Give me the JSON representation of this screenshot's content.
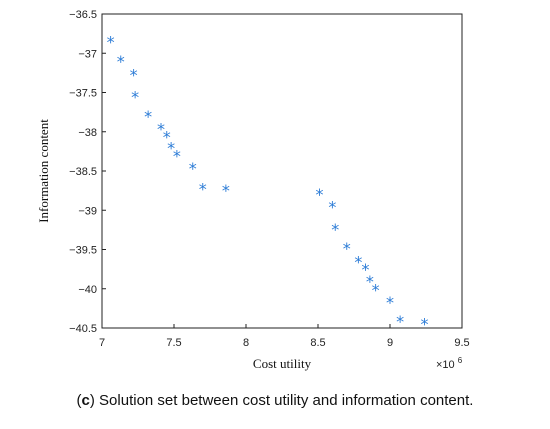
{
  "chart_data": {
    "type": "scatter",
    "xlabel": "Cost utility",
    "ylabel": "Information content",
    "xlim": [
      7,
      9.5
    ],
    "ylim": [
      -40.5,
      -36.5
    ],
    "x_ticks": [
      "7",
      "7.5",
      "8",
      "8.5",
      "9",
      "9.5"
    ],
    "y_ticks": [
      "-36.5",
      "-37",
      "-37.5",
      "-38",
      "-38.5",
      "-39",
      "-39.5",
      "-40",
      "-40.5"
    ],
    "x_exponent_label": "×10",
    "x_exponent_power": "6",
    "marker": "*",
    "marker_color": "#2b7bd6",
    "grid": false,
    "points": [
      {
        "x": 7.06,
        "y": -36.85
      },
      {
        "x": 7.13,
        "y": -37.1
      },
      {
        "x": 7.22,
        "y": -37.27
      },
      {
        "x": 7.23,
        "y": -37.55
      },
      {
        "x": 7.32,
        "y": -37.8
      },
      {
        "x": 7.41,
        "y": -37.96
      },
      {
        "x": 7.45,
        "y": -38.06
      },
      {
        "x": 7.48,
        "y": -38.2
      },
      {
        "x": 7.52,
        "y": -38.3
      },
      {
        "x": 7.63,
        "y": -38.46
      },
      {
        "x": 7.7,
        "y": -38.72
      },
      {
        "x": 7.86,
        "y": -38.74
      },
      {
        "x": 8.51,
        "y": -38.79
      },
      {
        "x": 8.6,
        "y": -38.95
      },
      {
        "x": 8.62,
        "y": -39.24
      },
      {
        "x": 8.7,
        "y": -39.48
      },
      {
        "x": 8.78,
        "y": -39.65
      },
      {
        "x": 8.83,
        "y": -39.75
      },
      {
        "x": 8.86,
        "y": -39.9
      },
      {
        "x": 8.9,
        "y": -40.01
      },
      {
        "x": 9.0,
        "y": -40.17
      },
      {
        "x": 9.07,
        "y": -40.41
      },
      {
        "x": 9.24,
        "y": -40.44
      }
    ]
  },
  "caption": {
    "bold_part": "c",
    "prefix": "(",
    "suffix": ") Solution set between cost utility and information content."
  }
}
